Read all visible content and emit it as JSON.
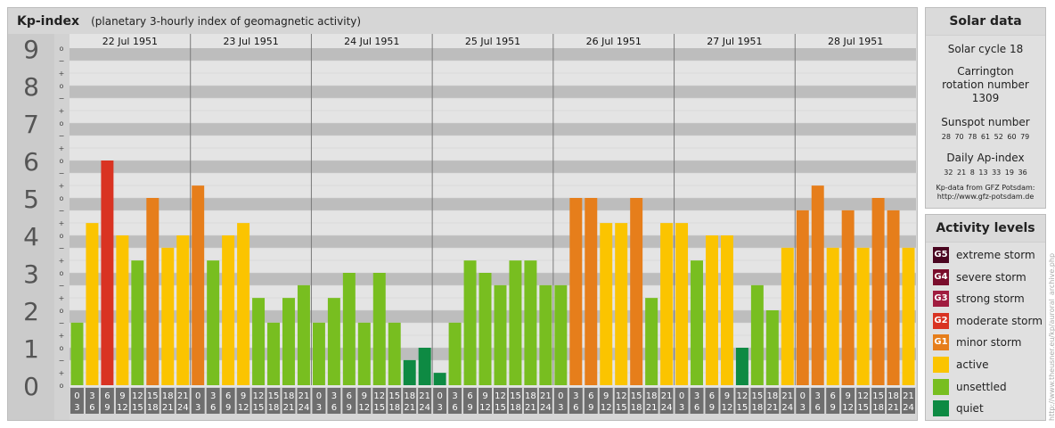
{
  "header": {
    "title": "Kp-index",
    "subtitle": "(planetary 3-hourly index of geomagnetic activity)"
  },
  "chart_data": {
    "type": "bar",
    "y_ticks": [
      "0",
      "1",
      "2",
      "3",
      "4",
      "5",
      "6",
      "7",
      "8",
      "9"
    ],
    "sub_ticks": [
      "o",
      "+",
      "−",
      "o",
      "+",
      "−",
      "o",
      "+",
      "−",
      "o",
      "+",
      "−",
      "o",
      "+",
      "−",
      "o",
      "+",
      "−",
      "o",
      "+",
      "−",
      "o",
      "+",
      "−",
      "o",
      "+",
      "−",
      "o"
    ],
    "ylim": [
      0,
      9
    ],
    "interval_top": [
      "0",
      "3",
      "6",
      "9",
      "12",
      "15",
      "18",
      "21"
    ],
    "interval_bottom": [
      "3",
      "6",
      "9",
      "12",
      "15",
      "18",
      "21",
      "24"
    ],
    "days": [
      {
        "date": "22 Jul 1951",
        "values": [
          1.67,
          4.33,
          6.0,
          4.0,
          3.33,
          5.0,
          3.67,
          4.0
        ]
      },
      {
        "date": "23 Jul 1951",
        "values": [
          5.33,
          3.33,
          4.0,
          4.33,
          2.33,
          1.67,
          2.33,
          2.67
        ]
      },
      {
        "date": "24 Jul 1951",
        "values": [
          1.67,
          2.33,
          3.0,
          1.67,
          3.0,
          1.67,
          0.67,
          1.0
        ]
      },
      {
        "date": "25 Jul 1951",
        "values": [
          0.33,
          1.67,
          3.33,
          3.0,
          2.67,
          3.33,
          3.33,
          2.67
        ]
      },
      {
        "date": "26 Jul 1951",
        "values": [
          2.67,
          5.0,
          5.0,
          4.33,
          4.33,
          5.0,
          2.33,
          4.33
        ]
      },
      {
        "date": "27 Jul 1951",
        "values": [
          4.33,
          3.33,
          4.0,
          4.0,
          1.0,
          2.67,
          2.0,
          3.67
        ]
      },
      {
        "date": "28 Jul 1951",
        "values": [
          4.67,
          5.33,
          3.67,
          4.67,
          3.67,
          5.0,
          4.67,
          3.67
        ]
      }
    ],
    "colors": {
      "quiet": "#0e8a43",
      "unsettled": "#78be20",
      "active": "#fbc400",
      "minor_storm": "#e67e1b",
      "moderate_storm": "#d93322",
      "strong_storm": "#a01c3f",
      "severe_storm": "#7a0d2c",
      "extreme_storm": "#4a0520"
    }
  },
  "solar": {
    "title": "Solar data",
    "cycle": "Solar cycle 18",
    "carrington": "Carrington rotation number 1309",
    "sunspot_label": "Sunspot number",
    "sunspot_values": "28 70 78 61 52 60 79",
    "ap_label": "Daily Ap-index",
    "ap_values": "32 21 8 13 33 19 36",
    "source": "Kp-data from GFZ Potsdam:",
    "source_url": "http://www.gfz-potsdam.de"
  },
  "activity": {
    "title": "Activity levels",
    "levels": [
      {
        "badge": "G5",
        "label": "extreme storm",
        "color": "#4a0520"
      },
      {
        "badge": "G4",
        "label": "severe storm",
        "color": "#7a0d2c"
      },
      {
        "badge": "G3",
        "label": "strong storm",
        "color": "#a01c3f"
      },
      {
        "badge": "G2",
        "label": "moderate storm",
        "color": "#d93322"
      },
      {
        "badge": "G1",
        "label": "minor storm",
        "color": "#e67e1b"
      },
      {
        "badge": "",
        "label": "active",
        "color": "#fbc400"
      },
      {
        "badge": "",
        "label": "unsettled",
        "color": "#78be20"
      },
      {
        "badge": "",
        "label": "quiet",
        "color": "#0e8a43"
      }
    ]
  },
  "credit": "http://www.theusner.eu/kp/auroral_archive.php"
}
